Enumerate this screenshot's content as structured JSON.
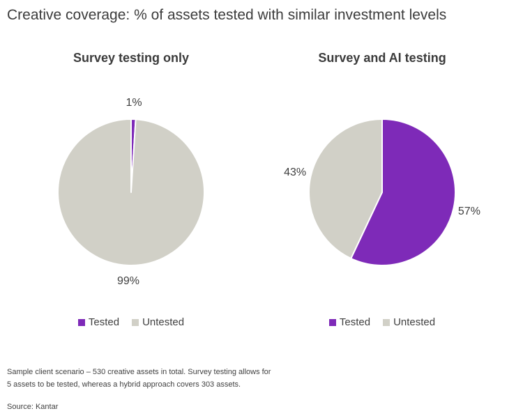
{
  "header": {
    "title": "Creative coverage: % of assets tested with similar investment levels"
  },
  "colors": {
    "tested": "#7E2AB8",
    "untested": "#D1D0C7",
    "text": "#3f3f3f",
    "slice_border": "#ffffff"
  },
  "chart_data": [
    {
      "type": "pie",
      "title": "Survey testing only",
      "categories": [
        "Tested",
        "Untested"
      ],
      "values": [
        1,
        99
      ],
      "data_labels": [
        "1%",
        "99%"
      ],
      "colors": [
        "#7E2AB8",
        "#D1D0C7"
      ],
      "legend_position": "bottom",
      "start_angle_deg": 0,
      "direction": "clockwise"
    },
    {
      "type": "pie",
      "title": "Survey and AI testing",
      "categories": [
        "Tested",
        "Untested"
      ],
      "values": [
        57,
        43
      ],
      "data_labels": [
        "57%",
        "43%"
      ],
      "colors": [
        "#7E2AB8",
        "#D1D0C7"
      ],
      "legend_position": "bottom",
      "start_angle_deg": 0,
      "direction": "clockwise"
    }
  ],
  "footnote": {
    "lines": [
      "Sample client scenario – 530 creative assets in total. Survey testing allows for",
      "5 assets to be tested, whereas a hybrid approach covers 303 assets."
    ]
  },
  "source": "Source: Kantar"
}
